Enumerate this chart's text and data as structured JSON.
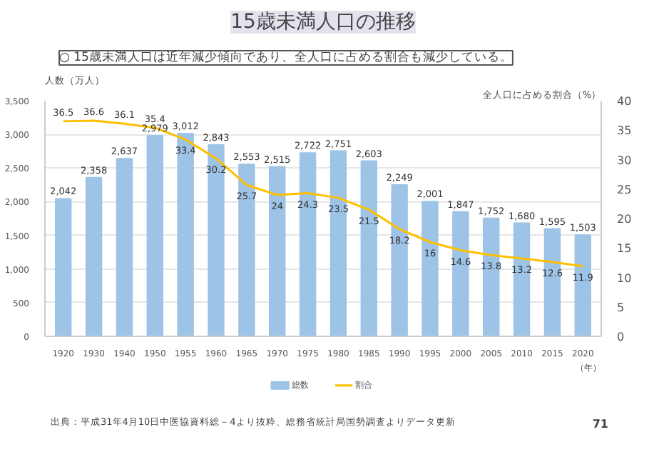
{
  "chart_data": {
    "type": "bar",
    "title": "15歳未満人口の推移",
    "subtitle": "○ 15歳未満人口は近年減少傾向であり、全人口に占める割合も減少している。",
    "ylabel": "人数（万人）",
    "y2label": "全人口に占める割合（%）",
    "xlabel": "（年）",
    "categories": [
      "1920",
      "1930",
      "1940",
      "1950",
      "1955",
      "1960",
      "1965",
      "1970",
      "1975",
      "1980",
      "1985",
      "1990",
      "1995",
      "2000",
      "2005",
      "2010",
      "2015",
      "2020"
    ],
    "series": [
      {
        "name": "総数",
        "color": "#9dc3e6",
        "values": [
          2042,
          2358,
          2637,
          2979,
          3012,
          2843,
          2553,
          2515,
          2722,
          2751,
          2603,
          2249,
          2001,
          1847,
          1752,
          1680,
          1595,
          1503
        ],
        "value_labels": [
          "2,042",
          "2,358",
          "2,637",
          "2,979",
          "3,012",
          "2,843",
          "2,553",
          "2,515",
          "2,722",
          "2,751",
          "2,603",
          "2,249",
          "2,001",
          "1,847",
          "1,752",
          "1,680",
          "1,595",
          "1,503"
        ]
      },
      {
        "name": "割合",
        "type": "line",
        "axis": "y2",
        "color": "#ffc000",
        "values": [
          36.5,
          36.6,
          36.1,
          35.4,
          33.4,
          30.2,
          25.7,
          24,
          24.3,
          23.5,
          21.5,
          18.2,
          16,
          14.6,
          13.8,
          13.2,
          12.6,
          11.9
        ]
      }
    ],
    "ylim": [
      0,
      3500
    ],
    "yticks": [
      {
        "value": 0,
        "label": "0"
      },
      {
        "value": 500,
        "label": "500"
      },
      {
        "value": 1000,
        "label": "1,000"
      },
      {
        "value": 1500,
        "label": "1,500"
      },
      {
        "value": 2000,
        "label": "2,000"
      },
      {
        "value": 2500,
        "label": "2,500"
      },
      {
        "value": 3000,
        "label": "3,000"
      },
      {
        "value": 3500,
        "label": "3,500"
      }
    ],
    "y2lim": [
      0,
      40
    ],
    "y2ticks": [
      0,
      5,
      10,
      15,
      20,
      25,
      30,
      35,
      40
    ],
    "grid": "y",
    "legend": "bottom",
    "data_labels": true,
    "annotations": [
      "出典：平成31年4月10日中医協資料総－4より抜粋、総務省統計局国勢調査よりデータ更新",
      "71"
    ]
  }
}
